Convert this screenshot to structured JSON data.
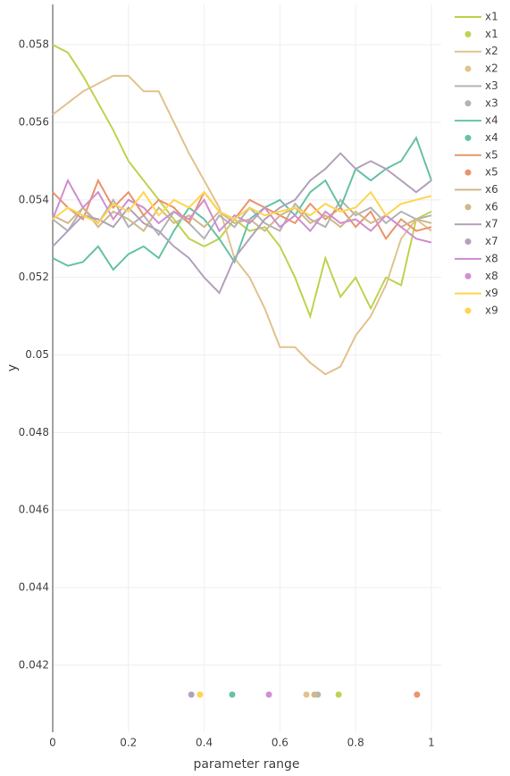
{
  "chart_data": {
    "type": "line",
    "xlabel": "parameter range",
    "ylabel": "y",
    "xlim": [
      0,
      1.026
    ],
    "ylim": [
      0.04027,
      0.05904
    ],
    "xticks": [
      0,
      0.2,
      0.4,
      0.6,
      0.8,
      1
    ],
    "yticks": [
      0.042,
      0.044,
      0.046,
      0.048,
      0.05,
      0.052,
      0.054,
      0.056,
      0.058
    ],
    "grid": true,
    "legend": "right",
    "x": [
      0,
      0.04,
      0.08,
      0.12,
      0.16,
      0.2,
      0.24,
      0.28,
      0.32,
      0.36,
      0.4,
      0.44,
      0.48,
      0.52,
      0.56,
      0.6,
      0.64,
      0.68,
      0.72,
      0.76,
      0.8,
      0.84,
      0.88,
      0.92,
      0.96,
      1
    ],
    "series": [
      {
        "name": "x1",
        "mode": "lines",
        "color": "#bdd44f",
        "values": [
          0.058,
          0.0578,
          0.0572,
          0.0565,
          0.0558,
          0.055,
          0.0545,
          0.054,
          0.0535,
          0.053,
          0.0528,
          0.053,
          0.0535,
          0.0532,
          0.0533,
          0.0528,
          0.052,
          0.051,
          0.0525,
          0.0515,
          0.052,
          0.0512,
          0.052,
          0.0518,
          0.0535,
          0.0537
        ]
      },
      {
        "name": "x1",
        "mode": "markers",
        "color": "#bdd44f",
        "x": [
          0.755
        ],
        "values": [
          0.04124
        ]
      },
      {
        "name": "x2",
        "mode": "lines",
        "color": "#e2c28f",
        "values": [
          0.0562,
          0.0565,
          0.0568,
          0.057,
          0.0572,
          0.0572,
          0.0568,
          0.0568,
          0.056,
          0.0552,
          0.0545,
          0.0538,
          0.0525,
          0.052,
          0.0512,
          0.0502,
          0.0502,
          0.0498,
          0.0495,
          0.0497,
          0.0505,
          0.051,
          0.0518,
          0.053,
          0.0535,
          0.0532
        ]
      },
      {
        "name": "x2",
        "mode": "markers",
        "color": "#e2c28f",
        "x": [
          0.67
        ],
        "values": [
          0.04124
        ]
      },
      {
        "name": "x3",
        "mode": "lines",
        "color": "#b3b3b3",
        "values": [
          0.0535,
          0.0532,
          0.0538,
          0.0534,
          0.054,
          0.0533,
          0.0536,
          0.0531,
          0.0537,
          0.0534,
          0.053,
          0.0536,
          0.0533,
          0.0538,
          0.0534,
          0.0532,
          0.0539,
          0.0535,
          0.0533,
          0.054,
          0.0536,
          0.0538,
          0.0534,
          0.0537,
          0.0535,
          0.0536
        ]
      },
      {
        "name": "x3",
        "mode": "markers",
        "color": "#b3b3b3",
        "x": [
          0.7
        ],
        "values": [
          0.04124
        ]
      },
      {
        "name": "x4",
        "mode": "lines",
        "color": "#66c2a5",
        "values": [
          0.0525,
          0.0523,
          0.0524,
          0.0528,
          0.0522,
          0.0526,
          0.0528,
          0.0525,
          0.0532,
          0.0538,
          0.0535,
          0.053,
          0.0524,
          0.0535,
          0.0538,
          0.054,
          0.0536,
          0.0542,
          0.0545,
          0.0538,
          0.0548,
          0.0545,
          0.0548,
          0.055,
          0.0556,
          0.0545
        ]
      },
      {
        "name": "x4",
        "mode": "markers",
        "color": "#66c2a5",
        "x": [
          0.474
        ],
        "values": [
          0.04124
        ]
      },
      {
        "name": "x5",
        "mode": "lines",
        "color": "#ea946b",
        "values": [
          0.0542,
          0.0538,
          0.0535,
          0.0545,
          0.0538,
          0.0542,
          0.0536,
          0.054,
          0.0538,
          0.0534,
          0.0542,
          0.0537,
          0.0535,
          0.054,
          0.0538,
          0.0536,
          0.0534,
          0.0539,
          0.0535,
          0.0538,
          0.0533,
          0.0537,
          0.053,
          0.0535,
          0.0532,
          0.0533
        ]
      },
      {
        "name": "x5",
        "mode": "markers",
        "color": "#ea946b",
        "x": [
          0.962
        ],
        "values": [
          0.04124
        ]
      },
      {
        "name": "x6",
        "mode": "lines",
        "color": "#cfb98b",
        "values": [
          0.0536,
          0.0534,
          0.0538,
          0.0533,
          0.0537,
          0.0535,
          0.0532,
          0.0538,
          0.0534,
          0.0536,
          0.0533,
          0.0537,
          0.0534,
          0.0535,
          0.0532,
          0.0536,
          0.0538,
          0.0534,
          0.0536,
          0.0533,
          0.0537,
          0.0534,
          0.0536,
          0.0533,
          0.0535,
          0.0534
        ]
      },
      {
        "name": "x6",
        "mode": "markers",
        "color": "#cfb98b",
        "x": [
          0.691
        ],
        "values": [
          0.04124
        ]
      },
      {
        "name": "x7",
        "mode": "lines",
        "color": "#b3a1bb",
        "values": [
          0.0528,
          0.0532,
          0.0536,
          0.0535,
          0.0533,
          0.0538,
          0.0534,
          0.0532,
          0.0528,
          0.0525,
          0.052,
          0.0516,
          0.0525,
          0.053,
          0.0535,
          0.0538,
          0.054,
          0.0545,
          0.0548,
          0.0552,
          0.0548,
          0.055,
          0.0548,
          0.0545,
          0.0542,
          0.0545
        ]
      },
      {
        "name": "x7",
        "mode": "markers",
        "color": "#b3a1bb",
        "x": [
          0.366
        ],
        "values": [
          0.04124
        ]
      },
      {
        "name": "x8",
        "mode": "lines",
        "color": "#d08fd0",
        "values": [
          0.0535,
          0.0545,
          0.0538,
          0.0542,
          0.0535,
          0.054,
          0.0538,
          0.0534,
          0.0537,
          0.0535,
          0.054,
          0.0532,
          0.0536,
          0.0534,
          0.0538,
          0.0533,
          0.0536,
          0.0532,
          0.0537,
          0.0534,
          0.0535,
          0.0532,
          0.0536,
          0.0533,
          0.053,
          0.0529
        ]
      },
      {
        "name": "x8",
        "mode": "markers",
        "color": "#d08fd0",
        "x": [
          0.571
        ],
        "values": [
          0.04124
        ]
      },
      {
        "name": "x9",
        "mode": "lines",
        "color": "#ffd54f",
        "values": [
          0.0535,
          0.0538,
          0.0536,
          0.0534,
          0.0539,
          0.0537,
          0.0542,
          0.0536,
          0.054,
          0.0538,
          0.0542,
          0.0537,
          0.0535,
          0.0538,
          0.0536,
          0.0537,
          0.0538,
          0.0536,
          0.0539,
          0.0537,
          0.0538,
          0.0542,
          0.0536,
          0.0539,
          0.054,
          0.0541
        ]
      },
      {
        "name": "x9",
        "mode": "markers",
        "color": "#ffd54f",
        "x": [
          0.389
        ],
        "values": [
          0.04124
        ]
      }
    ]
  }
}
